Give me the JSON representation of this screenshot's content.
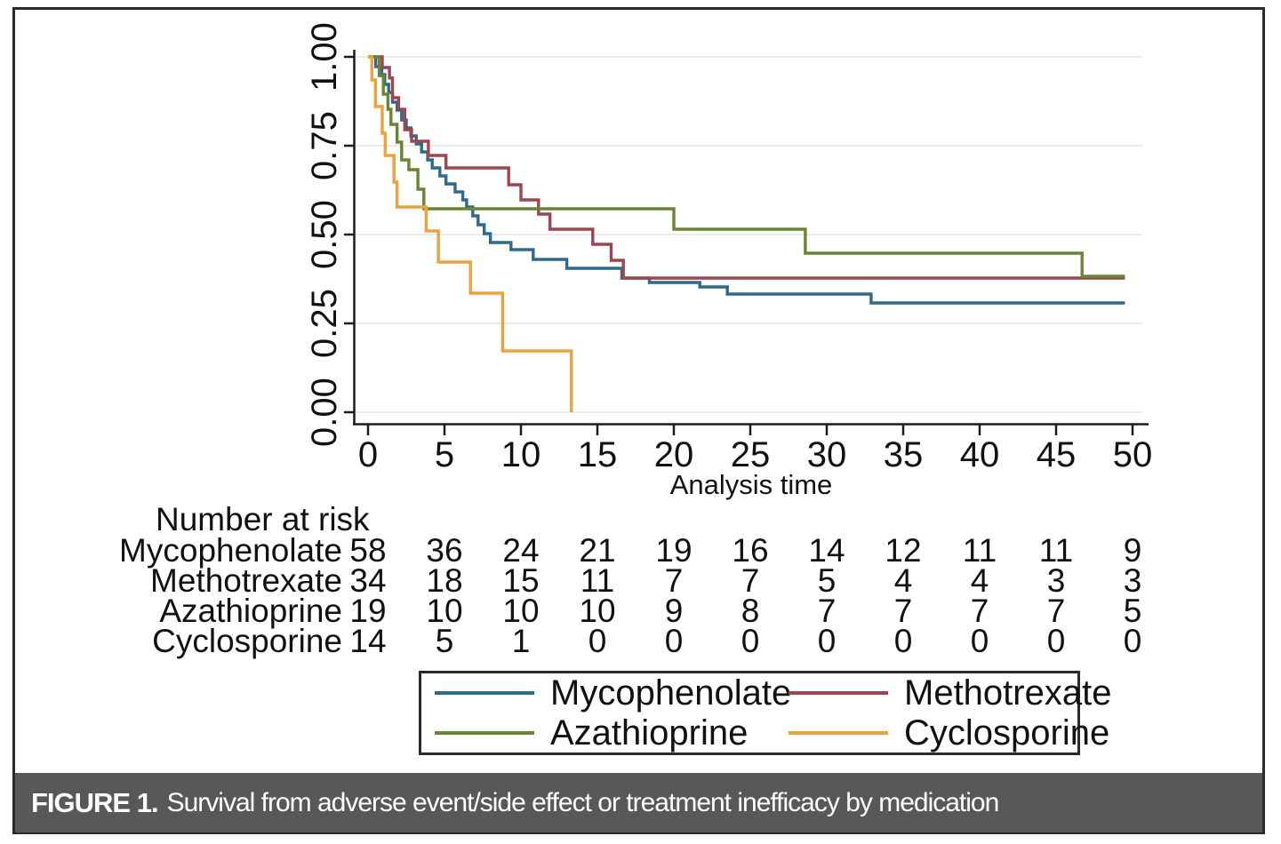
{
  "figure": {
    "caption_label": "FIGURE 1.",
    "caption_text": "Survival from adverse event/side effect or treatment inefficacy by medication"
  },
  "chart_data": {
    "type": "line",
    "subtype": "kaplan-meier-step",
    "title": "",
    "xlabel": "Analysis time",
    "ylabel": "",
    "xlim": [
      0,
      50
    ],
    "ylim": [
      0.0,
      1.0
    ],
    "x_ticks": [
      0,
      5,
      10,
      15,
      20,
      25,
      30,
      35,
      40,
      45,
      50
    ],
    "y_ticks": [
      0.0,
      0.25,
      0.5,
      0.75,
      1.0
    ],
    "y_tick_labels": [
      "0.00",
      "0.25",
      "0.50",
      "0.75",
      "1.00"
    ],
    "grid": "horizontal",
    "grid_color": "#ebebeb",
    "axis_color": "#1c1c1c",
    "legend_position": "bottom",
    "series": [
      {
        "name": "Mycophenolate",
        "color": "#2f6a8d",
        "end_time": 49.5,
        "steps": [
          [
            0,
            1.0
          ],
          [
            0.5,
            0.9725
          ],
          [
            0.9,
            0.95
          ],
          [
            1.1,
            0.9225
          ],
          [
            1.35,
            0.9
          ],
          [
            1.6,
            0.8725
          ],
          [
            1.9,
            0.85
          ],
          [
            2.2,
            0.8225
          ],
          [
            2.5,
            0.8
          ],
          [
            2.8,
            0.7775
          ],
          [
            3.15,
            0.755
          ],
          [
            3.5,
            0.7325
          ],
          [
            3.9,
            0.71
          ],
          [
            4.2,
            0.6875
          ],
          [
            4.7,
            0.665
          ],
          [
            5.1,
            0.6425
          ],
          [
            5.7,
            0.62
          ],
          [
            6.2,
            0.5975
          ],
          [
            6.45,
            0.5775
          ],
          [
            6.85,
            0.5525
          ],
          [
            7.2,
            0.5275
          ],
          [
            7.6,
            0.5025
          ],
          [
            8.0,
            0.4775
          ],
          [
            9.35,
            0.4575
          ],
          [
            10.8,
            0.43
          ],
          [
            13.0,
            0.405
          ],
          [
            16.6,
            0.3775
          ],
          [
            18.4,
            0.365
          ],
          [
            21.7,
            0.3525
          ],
          [
            23.5,
            0.3325
          ],
          [
            32.9,
            0.3075
          ]
        ]
      },
      {
        "name": "Methotrexate",
        "color": "#9d464e",
        "end_time": 49.5,
        "steps": [
          [
            0,
            1.0
          ],
          [
            0.93,
            0.97
          ],
          [
            1.4,
            0.9405
          ],
          [
            1.6,
            0.885
          ],
          [
            2.0,
            0.8525
          ],
          [
            2.4,
            0.795
          ],
          [
            2.85,
            0.7625
          ],
          [
            3.95,
            0.7225
          ],
          [
            5.1,
            0.6875
          ],
          [
            9.2,
            0.64
          ],
          [
            10.0,
            0.5975
          ],
          [
            11.15,
            0.5575
          ],
          [
            11.9,
            0.515
          ],
          [
            14.7,
            0.4725
          ],
          [
            15.9,
            0.4275
          ],
          [
            16.7,
            0.3775
          ]
        ]
      },
      {
        "name": "Azathioprine",
        "color": "#698432",
        "end_time": 49.5,
        "steps": [
          [
            0,
            1.0
          ],
          [
            0.73,
            0.947
          ],
          [
            1.0,
            0.895
          ],
          [
            1.3,
            0.8525
          ],
          [
            1.5,
            0.81
          ],
          [
            1.9,
            0.76
          ],
          [
            2.2,
            0.71
          ],
          [
            2.67,
            0.6825
          ],
          [
            3.26,
            0.6275
          ],
          [
            3.65,
            0.5725
          ],
          [
            20.0,
            0.515
          ],
          [
            28.6,
            0.4475
          ],
          [
            46.7,
            0.3825
          ]
        ]
      },
      {
        "name": "Cyclosporine",
        "color": "#eda23c",
        "end_time": null,
        "steps": [
          [
            0,
            1.0
          ],
          [
            0.25,
            0.935
          ],
          [
            0.48,
            0.86
          ],
          [
            0.93,
            0.785
          ],
          [
            1.12,
            0.7225
          ],
          [
            1.7,
            0.6475
          ],
          [
            1.9,
            0.5775
          ],
          [
            3.8,
            0.51
          ],
          [
            4.6,
            0.4225
          ],
          [
            6.7,
            0.335
          ],
          [
            8.8,
            0.1725
          ],
          [
            13.3,
            0.0
          ]
        ]
      }
    ]
  },
  "risk_table": {
    "title": "Number at risk",
    "times": [
      0,
      5,
      10,
      15,
      20,
      25,
      30,
      35,
      40,
      45,
      50
    ],
    "rows": [
      {
        "label": "Mycophenolate",
        "values": [
          58,
          36,
          24,
          21,
          19,
          16,
          14,
          12,
          11,
          11,
          9
        ]
      },
      {
        "label": "Methotrexate",
        "values": [
          34,
          18,
          15,
          11,
          7,
          7,
          5,
          4,
          4,
          3,
          3
        ]
      },
      {
        "label": "Azathioprine",
        "values": [
          19,
          10,
          10,
          10,
          9,
          8,
          7,
          7,
          7,
          7,
          5
        ]
      },
      {
        "label": "Cyclosporine",
        "values": [
          14,
          5,
          1,
          0,
          0,
          0,
          0,
          0,
          0,
          0,
          0
        ]
      }
    ]
  },
  "legend": {
    "items": [
      {
        "label": "Mycophenolate",
        "color": "#2f6a8d"
      },
      {
        "label": "Methotrexate",
        "color": "#9d464e"
      },
      {
        "label": "Azathioprine",
        "color": "#698432"
      },
      {
        "label": "Cyclosporine",
        "color": "#eda23c"
      }
    ]
  }
}
